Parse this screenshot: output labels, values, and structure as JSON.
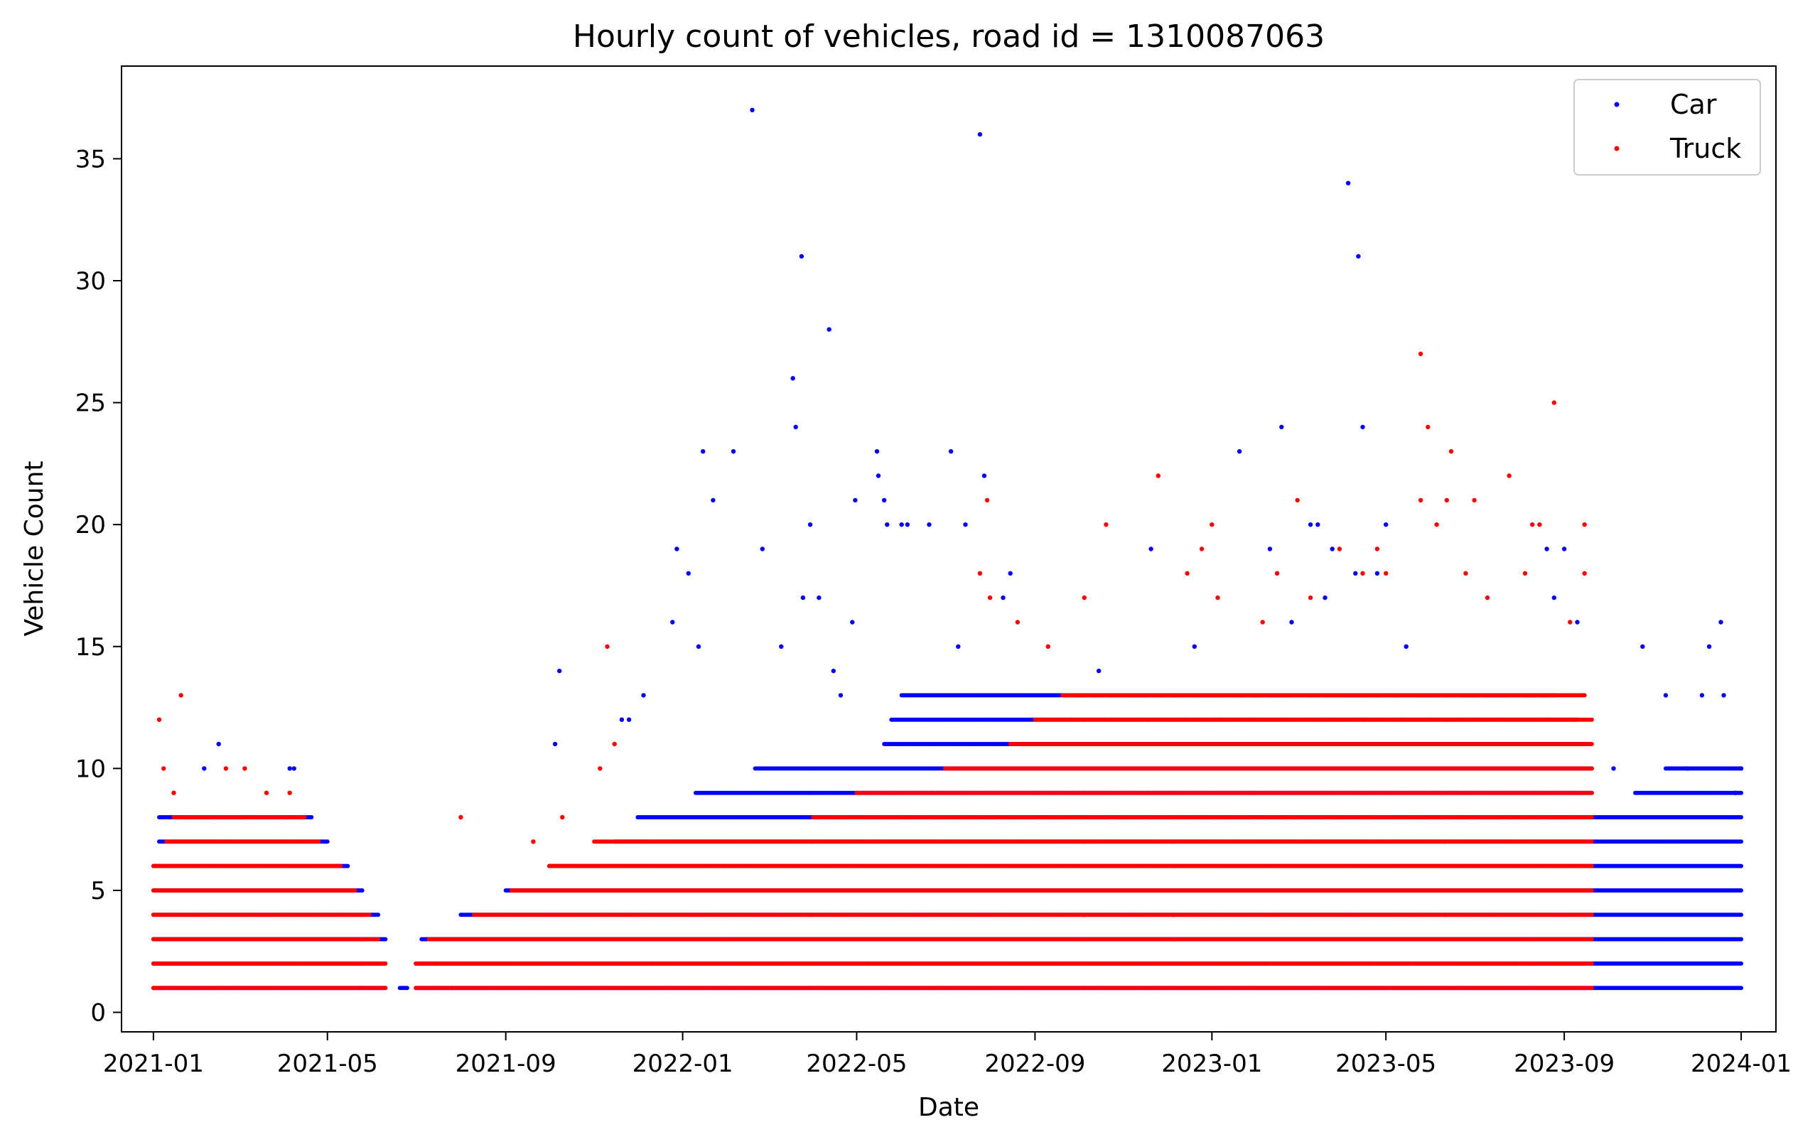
{
  "chart_data": {
    "type": "scatter",
    "title": "Hourly count of vehicles, road id = 1310087063",
    "xlabel": "Date",
    "ylabel": "Vehicle Count",
    "x_tick_labels": [
      "2021-01",
      "2021-05",
      "2021-09",
      "2022-01",
      "2022-05",
      "2022-09",
      "2023-01",
      "2023-05",
      "2023-09",
      "2024-01"
    ],
    "y_tick_labels": [
      "0",
      "5",
      "10",
      "15",
      "20",
      "25",
      "30",
      "35"
    ],
    "x_range": [
      "2020-12-10",
      "2024-01-25"
    ],
    "ylim": [
      -0.8,
      38.8
    ],
    "grid": false,
    "legend_position": "top-right",
    "colors": {
      "Car": "#0000ff",
      "Truck": "#ff0000"
    },
    "series": [
      {
        "name": "Car",
        "color": "#0000ff",
        "level_runs": [
          {
            "y": 1,
            "runs": [
              [
                "2021-01-01",
                "2021-06-10"
              ],
              [
                "2021-06-20",
                "2021-06-25"
              ],
              [
                "2021-07-01",
                "2024-01-01"
              ]
            ]
          },
          {
            "y": 2,
            "runs": [
              [
                "2021-01-01",
                "2021-06-10"
              ],
              [
                "2021-07-01",
                "2024-01-01"
              ]
            ]
          },
          {
            "y": 3,
            "runs": [
              [
                "2021-01-01",
                "2021-06-10"
              ],
              [
                "2021-07-05",
                "2024-01-01"
              ]
            ]
          },
          {
            "y": 4,
            "runs": [
              [
                "2021-01-01",
                "2021-06-05"
              ],
              [
                "2021-08-01",
                "2024-01-01"
              ]
            ]
          },
          {
            "y": 5,
            "runs": [
              [
                "2021-01-01",
                "2021-05-25"
              ],
              [
                "2021-09-01",
                "2024-01-01"
              ]
            ]
          },
          {
            "y": 6,
            "runs": [
              [
                "2021-01-01",
                "2021-05-15"
              ],
              [
                "2021-10-01",
                "2024-01-01"
              ]
            ]
          },
          {
            "y": 7,
            "runs": [
              [
                "2021-01-05",
                "2021-05-01"
              ],
              [
                "2021-11-15",
                "2024-01-01"
              ]
            ]
          },
          {
            "y": 8,
            "runs": [
              [
                "2021-01-05",
                "2021-04-20"
              ],
              [
                "2021-12-01",
                "2024-01-01"
              ]
            ]
          },
          {
            "y": 9,
            "runs": [
              [
                "2022-01-10",
                "2023-09-20"
              ],
              [
                "2023-10-20",
                "2024-01-01"
              ]
            ]
          },
          {
            "y": 10,
            "runs": [
              [
                "2022-02-20",
                "2023-09-20"
              ],
              [
                "2023-11-10",
                "2024-01-01"
              ]
            ]
          },
          {
            "y": 11,
            "runs": [
              [
                "2022-05-20",
                "2023-09-15"
              ]
            ]
          },
          {
            "y": 12,
            "runs": [
              [
                "2022-05-25",
                "2023-09-10"
              ]
            ]
          },
          {
            "y": 13,
            "runs": [
              [
                "2022-06-01",
                "2023-08-25"
              ]
            ]
          }
        ],
        "points": [
          [
            "2021-02-15",
            11
          ],
          [
            "2021-02-05",
            10
          ],
          [
            "2021-04-05",
            10
          ],
          [
            "2021-04-08",
            10
          ],
          [
            "2021-10-05",
            11
          ],
          [
            "2021-10-08",
            14
          ],
          [
            "2021-11-20",
            12
          ],
          [
            "2021-11-25",
            12
          ],
          [
            "2021-12-05",
            13
          ],
          [
            "2021-12-25",
            16
          ],
          [
            "2021-12-28",
            19
          ],
          [
            "2022-01-05",
            18
          ],
          [
            "2022-01-12",
            15
          ],
          [
            "2022-01-15",
            23
          ],
          [
            "2022-01-22",
            21
          ],
          [
            "2022-02-05",
            23
          ],
          [
            "2022-02-18",
            37
          ],
          [
            "2022-02-25",
            19
          ],
          [
            "2022-03-18",
            26
          ],
          [
            "2022-03-20",
            24
          ],
          [
            "2022-03-24",
            31
          ],
          [
            "2022-03-30",
            20
          ],
          [
            "2022-04-12",
            28
          ],
          [
            "2022-04-30",
            21
          ],
          [
            "2022-04-28",
            16
          ],
          [
            "2022-05-15",
            23
          ],
          [
            "2022-05-16",
            22
          ],
          [
            "2022-05-20",
            21
          ],
          [
            "2022-05-22",
            20
          ],
          [
            "2022-06-01",
            20
          ],
          [
            "2022-06-05",
            20
          ],
          [
            "2022-06-20",
            20
          ],
          [
            "2022-07-05",
            23
          ],
          [
            "2022-07-15",
            20
          ],
          [
            "2022-07-25",
            36
          ],
          [
            "2022-07-28",
            22
          ],
          [
            "2022-08-15",
            18
          ],
          [
            "2023-01-20",
            23
          ],
          [
            "2023-02-10",
            19
          ],
          [
            "2023-02-18",
            24
          ],
          [
            "2023-03-10",
            20
          ],
          [
            "2023-03-15",
            20
          ],
          [
            "2023-03-25",
            19
          ],
          [
            "2023-04-05",
            34
          ],
          [
            "2023-04-12",
            31
          ],
          [
            "2023-04-15",
            24
          ],
          [
            "2023-04-25",
            18
          ],
          [
            "2023-05-01",
            20
          ],
          [
            "2023-05-15",
            15
          ],
          [
            "2023-08-20",
            19
          ],
          [
            "2023-08-25",
            17
          ],
          [
            "2023-09-01",
            19
          ],
          [
            "2023-09-10",
            16
          ],
          [
            "2023-10-05",
            10
          ],
          [
            "2023-10-25",
            15
          ],
          [
            "2023-11-10",
            13
          ],
          [
            "2023-11-25",
            10
          ],
          [
            "2023-12-10",
            15
          ],
          [
            "2023-12-18",
            16
          ],
          [
            "2023-12-20",
            13
          ],
          [
            "2024-01-01",
            10
          ],
          [
            "2022-03-10",
            15
          ],
          [
            "2022-03-25",
            17
          ],
          [
            "2022-04-05",
            17
          ],
          [
            "2022-04-15",
            14
          ],
          [
            "2022-04-20",
            13
          ],
          [
            "2022-07-10",
            15
          ],
          [
            "2022-08-10",
            17
          ],
          [
            "2022-10-15",
            14
          ],
          [
            "2022-11-20",
            19
          ],
          [
            "2022-12-20",
            15
          ],
          [
            "2023-02-25",
            16
          ],
          [
            "2023-03-20",
            17
          ],
          [
            "2023-04-10",
            18
          ],
          [
            "2023-12-05",
            13
          ],
          [
            "2023-12-28",
            9
          ]
        ]
      },
      {
        "name": "Truck",
        "color": "#ff0000",
        "level_runs": [
          {
            "y": 1,
            "runs": [
              [
                "2021-01-01",
                "2021-06-10"
              ],
              [
                "2021-07-01",
                "2023-09-20"
              ]
            ]
          },
          {
            "y": 2,
            "runs": [
              [
                "2021-01-01",
                "2021-06-10"
              ],
              [
                "2021-07-01",
                "2023-09-20"
              ]
            ]
          },
          {
            "y": 3,
            "runs": [
              [
                "2021-01-01",
                "2021-06-05"
              ],
              [
                "2021-07-10",
                "2023-09-20"
              ]
            ]
          },
          {
            "y": 4,
            "runs": [
              [
                "2021-01-01",
                "2021-05-30"
              ],
              [
                "2021-08-10",
                "2023-09-20"
              ]
            ]
          },
          {
            "y": 5,
            "runs": [
              [
                "2021-01-01",
                "2021-05-20"
              ],
              [
                "2021-09-05",
                "2023-09-20"
              ]
            ]
          },
          {
            "y": 6,
            "runs": [
              [
                "2021-01-01",
                "2021-05-10"
              ],
              [
                "2021-10-01",
                "2023-09-20"
              ]
            ]
          },
          {
            "y": 7,
            "runs": [
              [
                "2021-01-10",
                "2021-04-25"
              ],
              [
                "2021-11-01",
                "2023-09-20"
              ]
            ]
          },
          {
            "y": 8,
            "runs": [
              [
                "2021-01-15",
                "2021-04-15"
              ],
              [
                "2022-04-01",
                "2023-09-20"
              ]
            ]
          },
          {
            "y": 9,
            "runs": [
              [
                "2022-05-01",
                "2023-09-20"
              ]
            ]
          },
          {
            "y": 10,
            "runs": [
              [
                "2022-07-01",
                "2023-09-20"
              ]
            ]
          },
          {
            "y": 11,
            "runs": [
              [
                "2022-08-15",
                "2023-09-20"
              ]
            ]
          },
          {
            "y": 12,
            "runs": [
              [
                "2022-09-01",
                "2023-09-20"
              ]
            ]
          },
          {
            "y": 13,
            "runs": [
              [
                "2022-09-20",
                "2023-09-15"
              ]
            ]
          }
        ],
        "points": [
          [
            "2021-01-05",
            12
          ],
          [
            "2021-01-20",
            13
          ],
          [
            "2021-01-08",
            10
          ],
          [
            "2021-01-15",
            9
          ],
          [
            "2021-02-20",
            10
          ],
          [
            "2021-03-05",
            10
          ],
          [
            "2021-03-20",
            9
          ],
          [
            "2021-04-05",
            9
          ],
          [
            "2021-04-15",
            8
          ],
          [
            "2021-08-01",
            8
          ],
          [
            "2021-09-20",
            7
          ],
          [
            "2021-10-10",
            8
          ],
          [
            "2021-11-10",
            15
          ],
          [
            "2021-11-15",
            11
          ],
          [
            "2021-11-05",
            10
          ],
          [
            "2022-07-30",
            21
          ],
          [
            "2022-07-25",
            18
          ],
          [
            "2022-10-20",
            20
          ],
          [
            "2022-11-25",
            22
          ],
          [
            "2022-12-15",
            18
          ],
          [
            "2022-12-25",
            19
          ],
          [
            "2023-01-01",
            20
          ],
          [
            "2023-02-15",
            18
          ],
          [
            "2023-03-01",
            21
          ],
          [
            "2023-03-30",
            19
          ],
          [
            "2023-04-15",
            18
          ],
          [
            "2023-04-25",
            19
          ],
          [
            "2023-05-01",
            18
          ],
          [
            "2023-05-25",
            27
          ],
          [
            "2023-05-30",
            24
          ],
          [
            "2023-05-25",
            21
          ],
          [
            "2023-06-05",
            20
          ],
          [
            "2023-06-15",
            23
          ],
          [
            "2023-06-12",
            21
          ],
          [
            "2023-07-01",
            21
          ],
          [
            "2023-07-25",
            22
          ],
          [
            "2023-08-10",
            20
          ],
          [
            "2023-08-15",
            20
          ],
          [
            "2023-08-25",
            25
          ],
          [
            "2023-09-15",
            20
          ],
          [
            "2023-09-15",
            18
          ],
          [
            "2022-08-01",
            17
          ],
          [
            "2022-08-20",
            16
          ],
          [
            "2022-09-10",
            15
          ],
          [
            "2022-10-05",
            17
          ],
          [
            "2023-01-05",
            17
          ],
          [
            "2023-02-05",
            16
          ],
          [
            "2023-03-10",
            17
          ],
          [
            "2023-06-25",
            18
          ],
          [
            "2023-07-10",
            17
          ],
          [
            "2023-08-05",
            18
          ],
          [
            "2023-09-05",
            16
          ]
        ]
      }
    ]
  }
}
